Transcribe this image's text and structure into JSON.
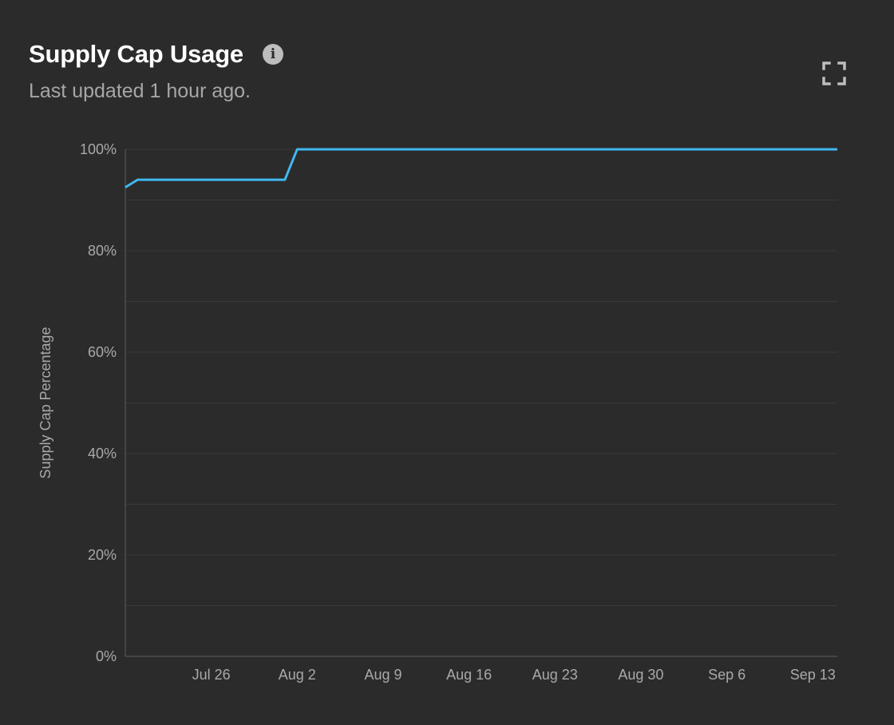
{
  "header": {
    "title": "Supply Cap Usage",
    "subtitle": "Last updated 1 hour ago."
  },
  "icons": {
    "info": "info-icon",
    "expand": "expand-icon"
  },
  "colors": {
    "background": "#2b2b2b",
    "line": "#3fb8f2",
    "grid": "#3a3a3a"
  },
  "chart_data": {
    "type": "line",
    "title": "",
    "xlabel": "",
    "ylabel": "Supply Cap Percentage",
    "xlim": [
      "2023-07-19",
      "2023-09-15"
    ],
    "ylim": [
      0,
      100
    ],
    "x_ticks": [
      "Jul 26",
      "Aug 2",
      "Aug 9",
      "Aug 16",
      "Aug 23",
      "Aug 30",
      "Sep 6",
      "Sep 13"
    ],
    "y_ticks": [
      "0%",
      "20%",
      "40%",
      "60%",
      "80%",
      "100%"
    ],
    "grid": true,
    "series": [
      {
        "x": [
          "2023-07-19",
          "2023-07-20",
          "2023-07-21",
          "2023-07-22",
          "2023-07-23",
          "2023-07-24",
          "2023-07-25",
          "2023-07-26",
          "2023-07-27",
          "2023-07-28",
          "2023-07-29",
          "2023-07-30",
          "2023-07-31",
          "2023-08-01",
          "2023-08-02",
          "2023-08-03",
          "2023-08-09",
          "2023-08-16",
          "2023-08-23",
          "2023-08-30",
          "2023-09-06",
          "2023-09-13",
          "2023-09-15"
        ],
        "y": [
          92.5,
          94,
          94,
          94,
          94,
          94,
          94,
          94,
          94,
          94,
          94,
          94,
          94,
          94,
          100,
          100,
          100,
          100,
          100,
          100,
          100,
          100,
          100
        ]
      }
    ]
  }
}
